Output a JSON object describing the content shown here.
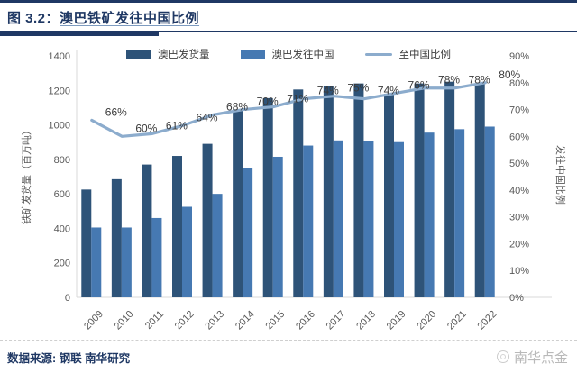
{
  "header": {
    "figure_label": "图 3.2：",
    "title": "澳巴铁矿发往中国比例"
  },
  "chart_data": {
    "type": "bar",
    "subtype": "clustered-bars-with-line",
    "categories": [
      "2009",
      "2010",
      "2011",
      "2012",
      "2013",
      "2014",
      "2015",
      "2016",
      "2017",
      "2018",
      "2019",
      "2020",
      "2021",
      "2022"
    ],
    "series": [
      {
        "name": "澳巴发货量",
        "type": "bar",
        "color": "#2e5378",
        "values": [
          625,
          685,
          770,
          820,
          890,
          1090,
          1155,
          1205,
          1225,
          1240,
          1180,
          1240,
          1250,
          1240
        ]
      },
      {
        "name": "澳巴发往中国",
        "type": "bar",
        "color": "#4679b2",
        "values": [
          405,
          405,
          460,
          525,
          600,
          750,
          815,
          880,
          910,
          905,
          900,
          955,
          975,
          990
        ]
      },
      {
        "name": "至中国比例",
        "type": "line",
        "axis": "right",
        "color": "#8caccd",
        "values": [
          66,
          60,
          61,
          64,
          68,
          70,
          71,
          74,
          75,
          74,
          76,
          78,
          78,
          80
        ],
        "label_format": "percent",
        "labels_visible": true
      }
    ],
    "left_axis": {
      "label": "铁矿发货量（百万吨）",
      "min": 0,
      "max": 1400,
      "step": 200
    },
    "right_axis": {
      "label": "发往中国比例",
      "min": 0,
      "max": 90,
      "step": 10,
      "format": "percent"
    },
    "legend_position": "top",
    "grid": false
  },
  "footer": {
    "source": "数据来源: 钢联 南华研究",
    "brand": "南华点金"
  },
  "colors": {
    "accent_navy": "#1f3864",
    "bar_total": "#2e5378",
    "bar_china": "#4679b2",
    "ratio_line": "#8caccd",
    "tick_text": "#595959",
    "axis_line": "#d9d9d9"
  }
}
